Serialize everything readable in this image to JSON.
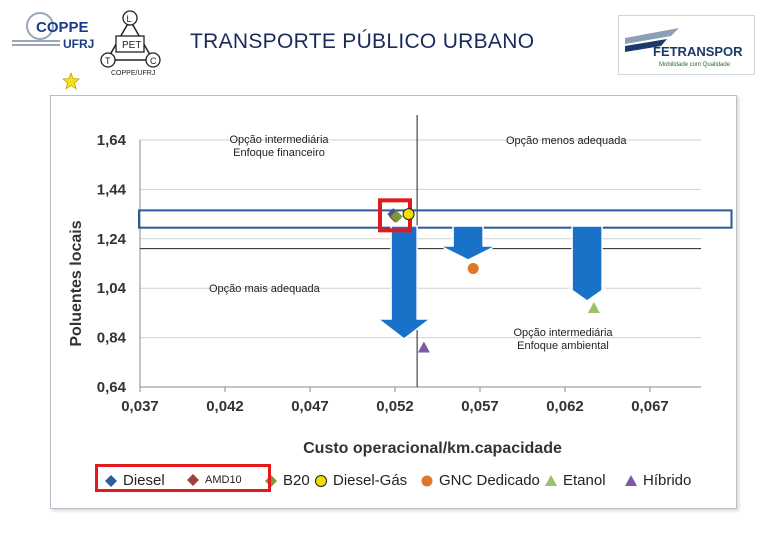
{
  "slide": {
    "title": "TRANSPORTE PÚBLICO URBANO",
    "logo_left_text": "COPPE",
    "logo_left_sub": "UFRJ",
    "logo_left_pet": "PET",
    "logo_left_letters": [
      "L",
      "T",
      "C"
    ],
    "logo_left_caption": "COPPE/UFRJ",
    "logo_right_text": "FETRANSPOR",
    "logo_right_tagline": "Mobilidade com Qualidade"
  },
  "colors": {
    "diesel": "#2e5aa0",
    "amd10": "#a0403a",
    "b20": "#7a9a3a",
    "diesel_gas": "#f0e000",
    "gnc": "#e0782a",
    "etanol": "#9ac26a",
    "hibrido": "#7a5aa0",
    "arrow": "#1a72c8",
    "highlight_red": "#e4191b",
    "band_blue": "#2a5a9a"
  },
  "chart_data": {
    "type": "scatter",
    "xlabel": "Custo operacional/km.capacidade",
    "ylabel": "Poluentes locais",
    "xlim": [
      0.037,
      0.07
    ],
    "ylim": [
      0.64,
      1.64
    ],
    "x_ticks": [
      "0,037",
      "0,042",
      "0,047",
      "0,052",
      "0,057",
      "0,062",
      "0,067"
    ],
    "x_tick_values": [
      0.037,
      0.042,
      0.047,
      0.052,
      0.057,
      0.062,
      0.067
    ],
    "y_ticks": [
      "1,64",
      "1,44",
      "1,24",
      "1,04",
      "0,84",
      "0,64"
    ],
    "y_tick_values": [
      1.64,
      1.44,
      1.24,
      1.04,
      0.84,
      0.64
    ],
    "grid": "horizontal",
    "reference_lines": {
      "x": 0.0533,
      "y": 1.2
    },
    "series": [
      {
        "name": "Diesel",
        "marker": "diamond",
        "points": [
          [
            0.0519,
            1.34
          ]
        ]
      },
      {
        "name": "AMD10",
        "marker": "diamond",
        "points": [
          [
            0.052,
            1.33
          ]
        ]
      },
      {
        "name": "B20",
        "marker": "diamond",
        "points": [
          [
            0.0521,
            1.33
          ]
        ]
      },
      {
        "name": "Diesel-Gás",
        "marker": "circle",
        "points": [
          [
            0.0528,
            1.34
          ]
        ]
      },
      {
        "name": "GNC Dedicado",
        "marker": "circle",
        "points": [
          [
            0.0566,
            1.12
          ]
        ]
      },
      {
        "name": "Etanol",
        "marker": "triangle",
        "points": [
          [
            0.0637,
            0.96
          ]
        ]
      },
      {
        "name": "Híbrido",
        "marker": "triangle",
        "points": [
          [
            0.0537,
            0.8
          ]
        ]
      }
    ],
    "annotations": [
      {
        "text": [
          "Opção intermediária",
          "Enfoque financeiro"
        ]
      },
      {
        "text": [
          "Opção menos adequada"
        ]
      },
      {
        "text": [
          "Opção mais adequada"
        ]
      },
      {
        "text": [
          "Opção intermediária",
          "Enfoque ambiental"
        ]
      }
    ]
  },
  "legend": [
    {
      "label": "Diesel",
      "series": "diesel"
    },
    {
      "label": "AMD10",
      "series": "amd10"
    },
    {
      "label": "B20",
      "series": "b20"
    },
    {
      "label": "Diesel-Gás",
      "series": "diesel_gas"
    },
    {
      "label": "GNC Dedicado",
      "series": "gnc"
    },
    {
      "label": "Etanol",
      "series": "etanol"
    },
    {
      "label": "Híbrido",
      "series": "hibrido"
    }
  ]
}
